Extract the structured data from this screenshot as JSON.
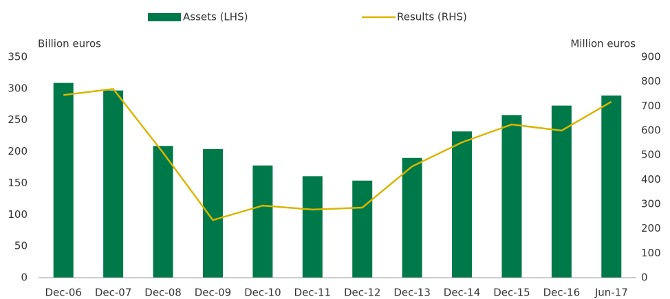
{
  "chart_data": {
    "type": "bar_line",
    "categories": [
      "Dec-06",
      "Dec-07",
      "Dec-08",
      "Dec-09",
      "Dec-10",
      "Dec-11",
      "Dec-12",
      "Dec-13",
      "Dec-14",
      "Dec-15",
      "Dec-16",
      "Jun-17"
    ],
    "y_label": "Billion euros",
    "y2_label": "Million euros",
    "ylim": [
      0,
      350
    ],
    "yticks": [
      0,
      50,
      100,
      150,
      200,
      250,
      300,
      350
    ],
    "y2lim": [
      0,
      900
    ],
    "y2ticks": [
      0,
      100,
      200,
      300,
      400,
      500,
      600,
      700,
      800,
      900
    ],
    "legend": "top",
    "series": [
      {
        "name": "Assets (LHS)",
        "type": "bar",
        "color": "#00794a",
        "axis": "y",
        "values": [
          309,
          297,
          209,
          204,
          178,
          161,
          154,
          190,
          232,
          258,
          273,
          289
        ]
      },
      {
        "name": "Results (RHS)",
        "type": "line",
        "color": "#d9b600",
        "axis": "y2",
        "values": [
          745,
          770,
          510,
          235,
          294,
          278,
          286,
          454,
          552,
          625,
          600,
          718
        ]
      }
    ]
  }
}
